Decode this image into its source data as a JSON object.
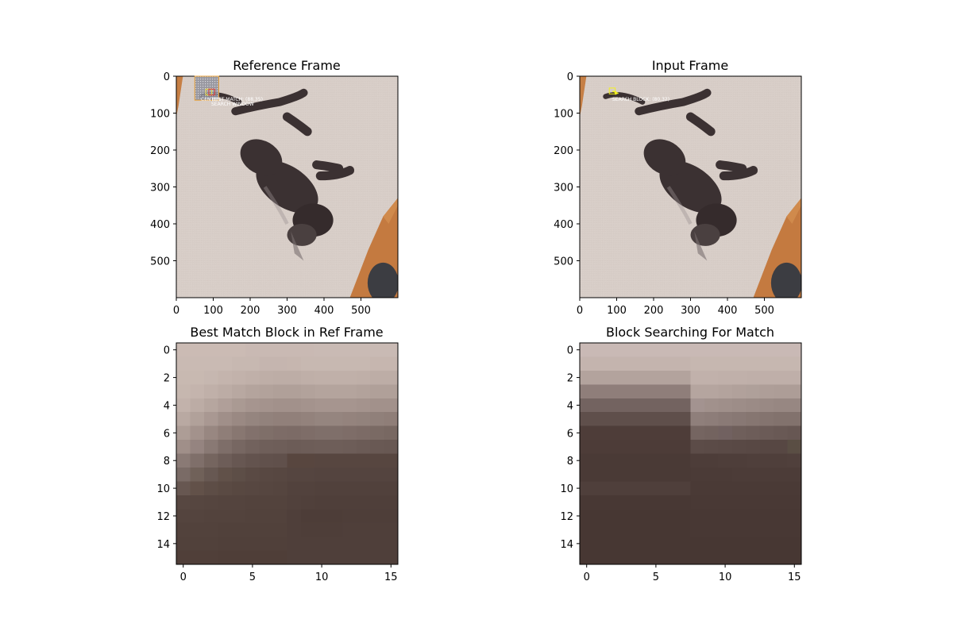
{
  "chart_data": [
    {
      "type": "image",
      "title": "Reference Frame",
      "image_subject": "black cat lying on its back on a light carpet",
      "xlim": [
        0,
        600
      ],
      "ylim": [
        600,
        0
      ],
      "xticks": [
        0,
        100,
        200,
        300,
        400,
        500
      ],
      "yticks": [
        0,
        100,
        200,
        300,
        400,
        500
      ],
      "search_window": {
        "x": [
          50,
          115
        ],
        "y": [
          0,
          65
        ],
        "label": "SEARCH WINDOW"
      },
      "center_block": {
        "x": 80,
        "y": 35,
        "size": 16,
        "label": "CENTER"
      },
      "best_match": {
        "x": 88,
        "y": 35,
        "size": 16,
        "label": "BEST MATCH: (88,35)"
      }
    },
    {
      "type": "image",
      "title": "Input Frame",
      "image_subject": "black cat lying on its back on a light carpet",
      "xlim": [
        0,
        600
      ],
      "ylim": [
        600,
        0
      ],
      "xticks": [
        0,
        100,
        200,
        300,
        400,
        500
      ],
      "yticks": [
        0,
        100,
        200,
        300,
        400,
        500
      ],
      "search_block": {
        "x": 80,
        "y": 32,
        "size": 16,
        "label": "SEARCH BLOCK: (80,32)"
      },
      "motion_vector": {
        "from": [
          80,
          32
        ],
        "to": [
          88,
          35
        ]
      }
    },
    {
      "type": "heatmap",
      "title": "Best Match Block in Ref Frame",
      "size": 16,
      "xticks": [
        0,
        5,
        10,
        15
      ],
      "yticks": [
        0,
        2,
        4,
        6,
        8,
        10,
        12,
        14
      ],
      "rows": [
        [
          "#cbbbb4",
          "#cbbbb4",
          "#cbbbb4",
          "#cbbbb4",
          "#cbbbb4",
          "#c9b9b3",
          "#c9b9b3",
          "#c9b9b3",
          "#c9b9b3",
          "#c9b9b3",
          "#c9bab4",
          "#c9bab4",
          "#c9bab4",
          "#c9bab4",
          "#c9bab4",
          "#c9bab4"
        ],
        [
          "#c9bab3",
          "#c9bab3",
          "#c9bab3",
          "#c9bab3",
          "#c7b8b1",
          "#c7b8b1",
          "#c5b5af",
          "#c5b5af",
          "#c6b6af",
          "#c7b8b1",
          "#c7b8b1",
          "#c7b8b1",
          "#c7b8b1",
          "#c7b8b1",
          "#c6b6af",
          "#c6b6af"
        ],
        [
          "#c8b9b1",
          "#c8b9b1",
          "#c6b7b0",
          "#c4b4ad",
          "#c2b2ab",
          "#c0b0a9",
          "#beaea7",
          "#bdada6",
          "#bdada6",
          "#bfafa8",
          "#c0b0a9",
          "#c0b0a9",
          "#c0b0a9",
          "#bfafa8",
          "#bdada6",
          "#bdada6"
        ],
        [
          "#c6b7af",
          "#c4b4ad",
          "#c0b0a9",
          "#bcaca5",
          "#b8a8a1",
          "#b4a49d",
          "#b2a29b",
          "#b0a099",
          "#b0a099",
          "#b2a29b",
          "#b4a49d",
          "#b4a49d",
          "#b4a49d",
          "#b2a29b",
          "#b0a099",
          "#b0a099"
        ],
        [
          "#c2b2ab",
          "#bcaca5",
          "#b6a69f",
          "#b09f99",
          "#aa9a93",
          "#a6958f",
          "#a4938d",
          "#a2918b",
          "#a2918b",
          "#a4938d",
          "#a6958f",
          "#a6958f",
          "#a6958f",
          "#a4938d",
          "#a2918b",
          "#a2918b"
        ],
        [
          "#b9a9a2",
          "#b1a19a",
          "#a99892",
          "#a08f89",
          "#9a8983",
          "#95857f",
          "#92827c",
          "#91807a",
          "#91807a",
          "#93827c",
          "#95857f",
          "#95857f",
          "#94837d",
          "#92827c",
          "#90807a",
          "#8f7e78"
        ],
        [
          "#ad9d96",
          "#a3928c",
          "#988781",
          "#8f7e78",
          "#887771",
          "#82716c",
          "#7f6f69",
          "#7d6c67",
          "#7c6b66",
          "#7e6d68",
          "#7f6f6a",
          "#7f6f6a",
          "#7e6d68",
          "#7c6b66",
          "#7a6a64",
          "#786862"
        ],
        [
          "#a08f89",
          "#958480",
          "#897974",
          "#7e6e69",
          "#776762",
          "#72625d",
          "#6f5f5a",
          "#6e5e59",
          "#6c5c57",
          "#6d5d58",
          "#6e5e59",
          "#6e5e59",
          "#6d5d58",
          "#6b5b56",
          "#695954",
          "#685853"
        ],
        [
          "#8a7a75",
          "#7f6f6a",
          "#75655f",
          "#6d5d58",
          "#675752",
          "#63534e",
          "#61514c",
          "#60504b",
          "#58463f",
          "#58463f",
          "#574640",
          "#574640",
          "#574640",
          "#574640",
          "#574640",
          "#574640"
        ],
        [
          "#7a6b66",
          "#706159",
          "#675852",
          "#615149",
          "#5d4e47",
          "#5a4a44",
          "#584842",
          "#574741",
          "#554540",
          "#554540",
          "#54443f",
          "#54443f",
          "#54443f",
          "#54443f",
          "#54443f",
          "#54443f"
        ],
        [
          "#675751",
          "#625149",
          "#5d4d46",
          "#5a4a43",
          "#584841",
          "#574741",
          "#564640",
          "#55453f",
          "#52423d",
          "#52423d",
          "#51413c",
          "#51413c",
          "#51413c",
          "#51413c",
          "#51413c",
          "#51413c"
        ],
        [
          "#574741",
          "#564640",
          "#55453f",
          "#54443e",
          "#54443e",
          "#53433d",
          "#53433d",
          "#53433d",
          "#51413c",
          "#50403b",
          "#4f3f3a",
          "#4f3f3a",
          "#4f3f3a",
          "#4f3f3a",
          "#4f3f3a",
          "#4f3f3a"
        ],
        [
          "#54443e",
          "#54443e",
          "#53433d",
          "#53433d",
          "#53433d",
          "#52423c",
          "#52423c",
          "#52423c",
          "#4f3f3a",
          "#4d3d38",
          "#4d3d38",
          "#4d3d38",
          "#4e3e39",
          "#4e3e39",
          "#4e3e39",
          "#4e3e39"
        ],
        [
          "#52423c",
          "#52423c",
          "#52423c",
          "#51413b",
          "#51413b",
          "#51413b",
          "#51413b",
          "#51413b",
          "#4f3f3a",
          "#4e3e39",
          "#4e3e39",
          "#4e3e39",
          "#4f3f3a",
          "#4f3f3a",
          "#4f3f3a",
          "#4f3f3a"
        ],
        [
          "#51413b",
          "#51413b",
          "#51413b",
          "#50403a",
          "#50403a",
          "#50403a",
          "#50403a",
          "#50403a",
          "#4f3f3a",
          "#4f3f3a",
          "#4f3f3a",
          "#4f3f3a",
          "#4f3f3a",
          "#4f3f3a",
          "#4f3f3a",
          "#4f3f3a"
        ],
        [
          "#503f39",
          "#503f39",
          "#503f39",
          "#4f3e38",
          "#4f3e38",
          "#4f3e38",
          "#4f3e38",
          "#4f3e38",
          "#4f3f3a",
          "#4f3f3a",
          "#4f3f3a",
          "#4f3f3a",
          "#4f3f3a",
          "#4f3f3a",
          "#4f3f3a",
          "#4f3f3a"
        ]
      ]
    },
    {
      "type": "heatmap",
      "title": "Block Searching For Match",
      "size": 16,
      "xticks": [
        0,
        5,
        10,
        15
      ],
      "yticks": [
        0,
        2,
        4,
        6,
        8,
        10,
        12,
        14
      ],
      "rows": [
        [
          "#c9b9b5",
          "#c9b9b5",
          "#c9b9b5",
          "#c9b9b5",
          "#c9b9b5",
          "#c9b9b5",
          "#c9b9b5",
          "#c9b9b5",
          "#c9b9b5",
          "#c9b9b5",
          "#c9b9b5",
          "#c9b9b5",
          "#c9b9b5",
          "#c9b9b5",
          "#c9b9b5",
          "#c9b9b5"
        ],
        [
          "#c4b4ae",
          "#c4b4ae",
          "#c4b4ae",
          "#c4b4ae",
          "#c4b4ae",
          "#c4b4ae",
          "#c4b4ae",
          "#c4b4ae",
          "#c6b7b0",
          "#c6b7b0",
          "#c6b7b0",
          "#c6b7b0",
          "#c6b7b0",
          "#c6b7b0",
          "#c6b7b0",
          "#c6b7b0"
        ],
        [
          "#b3a39d",
          "#b3a39d",
          "#b3a39d",
          "#b3a39d",
          "#b3a39d",
          "#b3a39d",
          "#b3a39d",
          "#b3a39d",
          "#c1b1ab",
          "#c1b1ab",
          "#c0b0aa",
          "#c0b0aa",
          "#bfafa9",
          "#bfafa9",
          "#bfafa9",
          "#bfafa9"
        ],
        [
          "#8f7e7a",
          "#8f7e7a",
          "#8f7e7a",
          "#8f7e7a",
          "#8f7e7a",
          "#8f7e7a",
          "#8f7e7a",
          "#8f7e7a",
          "#b5a59f",
          "#b5a59f",
          "#b3a39d",
          "#b1a19b",
          "#afa09a",
          "#ae9e98",
          "#ad9d97",
          "#ad9d97"
        ],
        [
          "#736360",
          "#736360",
          "#736360",
          "#736360",
          "#736360",
          "#736360",
          "#736360",
          "#736360",
          "#a39390",
          "#a1918c",
          "#9f8f8a",
          "#9d8d88",
          "#9b8b86",
          "#998984",
          "#978782",
          "#978782"
        ],
        [
          "#5f4f4b",
          "#5f4f4b",
          "#5f4f4b",
          "#5f4f4b",
          "#5f4f4b",
          "#5f4f4b",
          "#5f4f4b",
          "#5f4f4b",
          "#8f7f7b",
          "#8d7d79",
          "#8a7a76",
          "#887874",
          "#867671",
          "#84746f",
          "#82726d",
          "#82726d"
        ],
        [
          "#4e3d39",
          "#4e3d39",
          "#4e3d39",
          "#4e3d39",
          "#4e3d39",
          "#4e3d39",
          "#4e3d39",
          "#4e3d39",
          "#756561",
          "#73635f",
          "#716160",
          "#6f5f5b",
          "#6d5d59",
          "#6b5b57",
          "#695955",
          "#675753"
        ],
        [
          "#4d3c38",
          "#4d3c38",
          "#4d3c38",
          "#4d3c38",
          "#4d3c38",
          "#4d3c38",
          "#4d3c38",
          "#4d3c38",
          "#5c4c48",
          "#5b4b47",
          "#5a4a46",
          "#594945",
          "#584844",
          "#574743",
          "#574743",
          "#5a4e44"
        ],
        [
          "#4a3a36",
          "#4a3a36",
          "#4a3a36",
          "#4a3a36",
          "#4a3a36",
          "#4a3a36",
          "#4a3a36",
          "#4a3a36",
          "#4d3d39",
          "#4d3d39",
          "#4e3e3a",
          "#4e3e3a",
          "#4f3f3b",
          "#4f3f3b",
          "#4f3f3b",
          "#50403c"
        ],
        [
          "#4a3a36",
          "#4a3a36",
          "#4a3a36",
          "#4a3a36",
          "#4a3a36",
          "#4a3a36",
          "#4a3a36",
          "#4a3a36",
          "#4b3b37",
          "#4b3b37",
          "#4b3b37",
          "#4c3c38",
          "#4c3c38",
          "#4c3c38",
          "#4c3c38",
          "#4c3c38"
        ],
        [
          "#4f3f3b",
          "#4f3f3b",
          "#4f3f3b",
          "#4f3f3b",
          "#4f3f3b",
          "#4f3f3b",
          "#4f3f3b",
          "#4f3f3b",
          "#4a3a36",
          "#4a3a36",
          "#4a3a36",
          "#4a3a36",
          "#4a3a36",
          "#4a3a36",
          "#4a3a36",
          "#4a3a36"
        ],
        [
          "#483834",
          "#483834",
          "#483834",
          "#483834",
          "#483834",
          "#483834",
          "#483834",
          "#483834",
          "#493935",
          "#493935",
          "#493935",
          "#493935",
          "#493935",
          "#493935",
          "#493935",
          "#493935"
        ],
        [
          "#473733",
          "#473733",
          "#473733",
          "#473733",
          "#473733",
          "#473733",
          "#473733",
          "#473733",
          "#483834",
          "#483834",
          "#483834",
          "#483834",
          "#483834",
          "#483834",
          "#483834",
          "#483834"
        ],
        [
          "#473733",
          "#473733",
          "#473733",
          "#473733",
          "#473733",
          "#473733",
          "#473733",
          "#473733",
          "#483834",
          "#483834",
          "#483834",
          "#483834",
          "#483834",
          "#483834",
          "#483834",
          "#483834"
        ],
        [
          "#473733",
          "#473733",
          "#473733",
          "#473733",
          "#473733",
          "#473733",
          "#473733",
          "#473733",
          "#473733",
          "#473733",
          "#473733",
          "#473733",
          "#473733",
          "#473733",
          "#473733",
          "#473733"
        ],
        [
          "#473733",
          "#473733",
          "#473733",
          "#473733",
          "#473733",
          "#473733",
          "#473733",
          "#473733",
          "#473733",
          "#473733",
          "#473733",
          "#473733",
          "#473733",
          "#473733",
          "#473733",
          "#473733"
        ]
      ]
    }
  ],
  "colors": {
    "carpet": "#d8cec8",
    "cat": "#3b3132",
    "wood": "#c47a40",
    "search_window": "#e8a23a",
    "best_match_box": "#e04040",
    "center_box": "#f0e040",
    "search_block_box": "#f2f020",
    "annotation_text": "#ffffff"
  }
}
